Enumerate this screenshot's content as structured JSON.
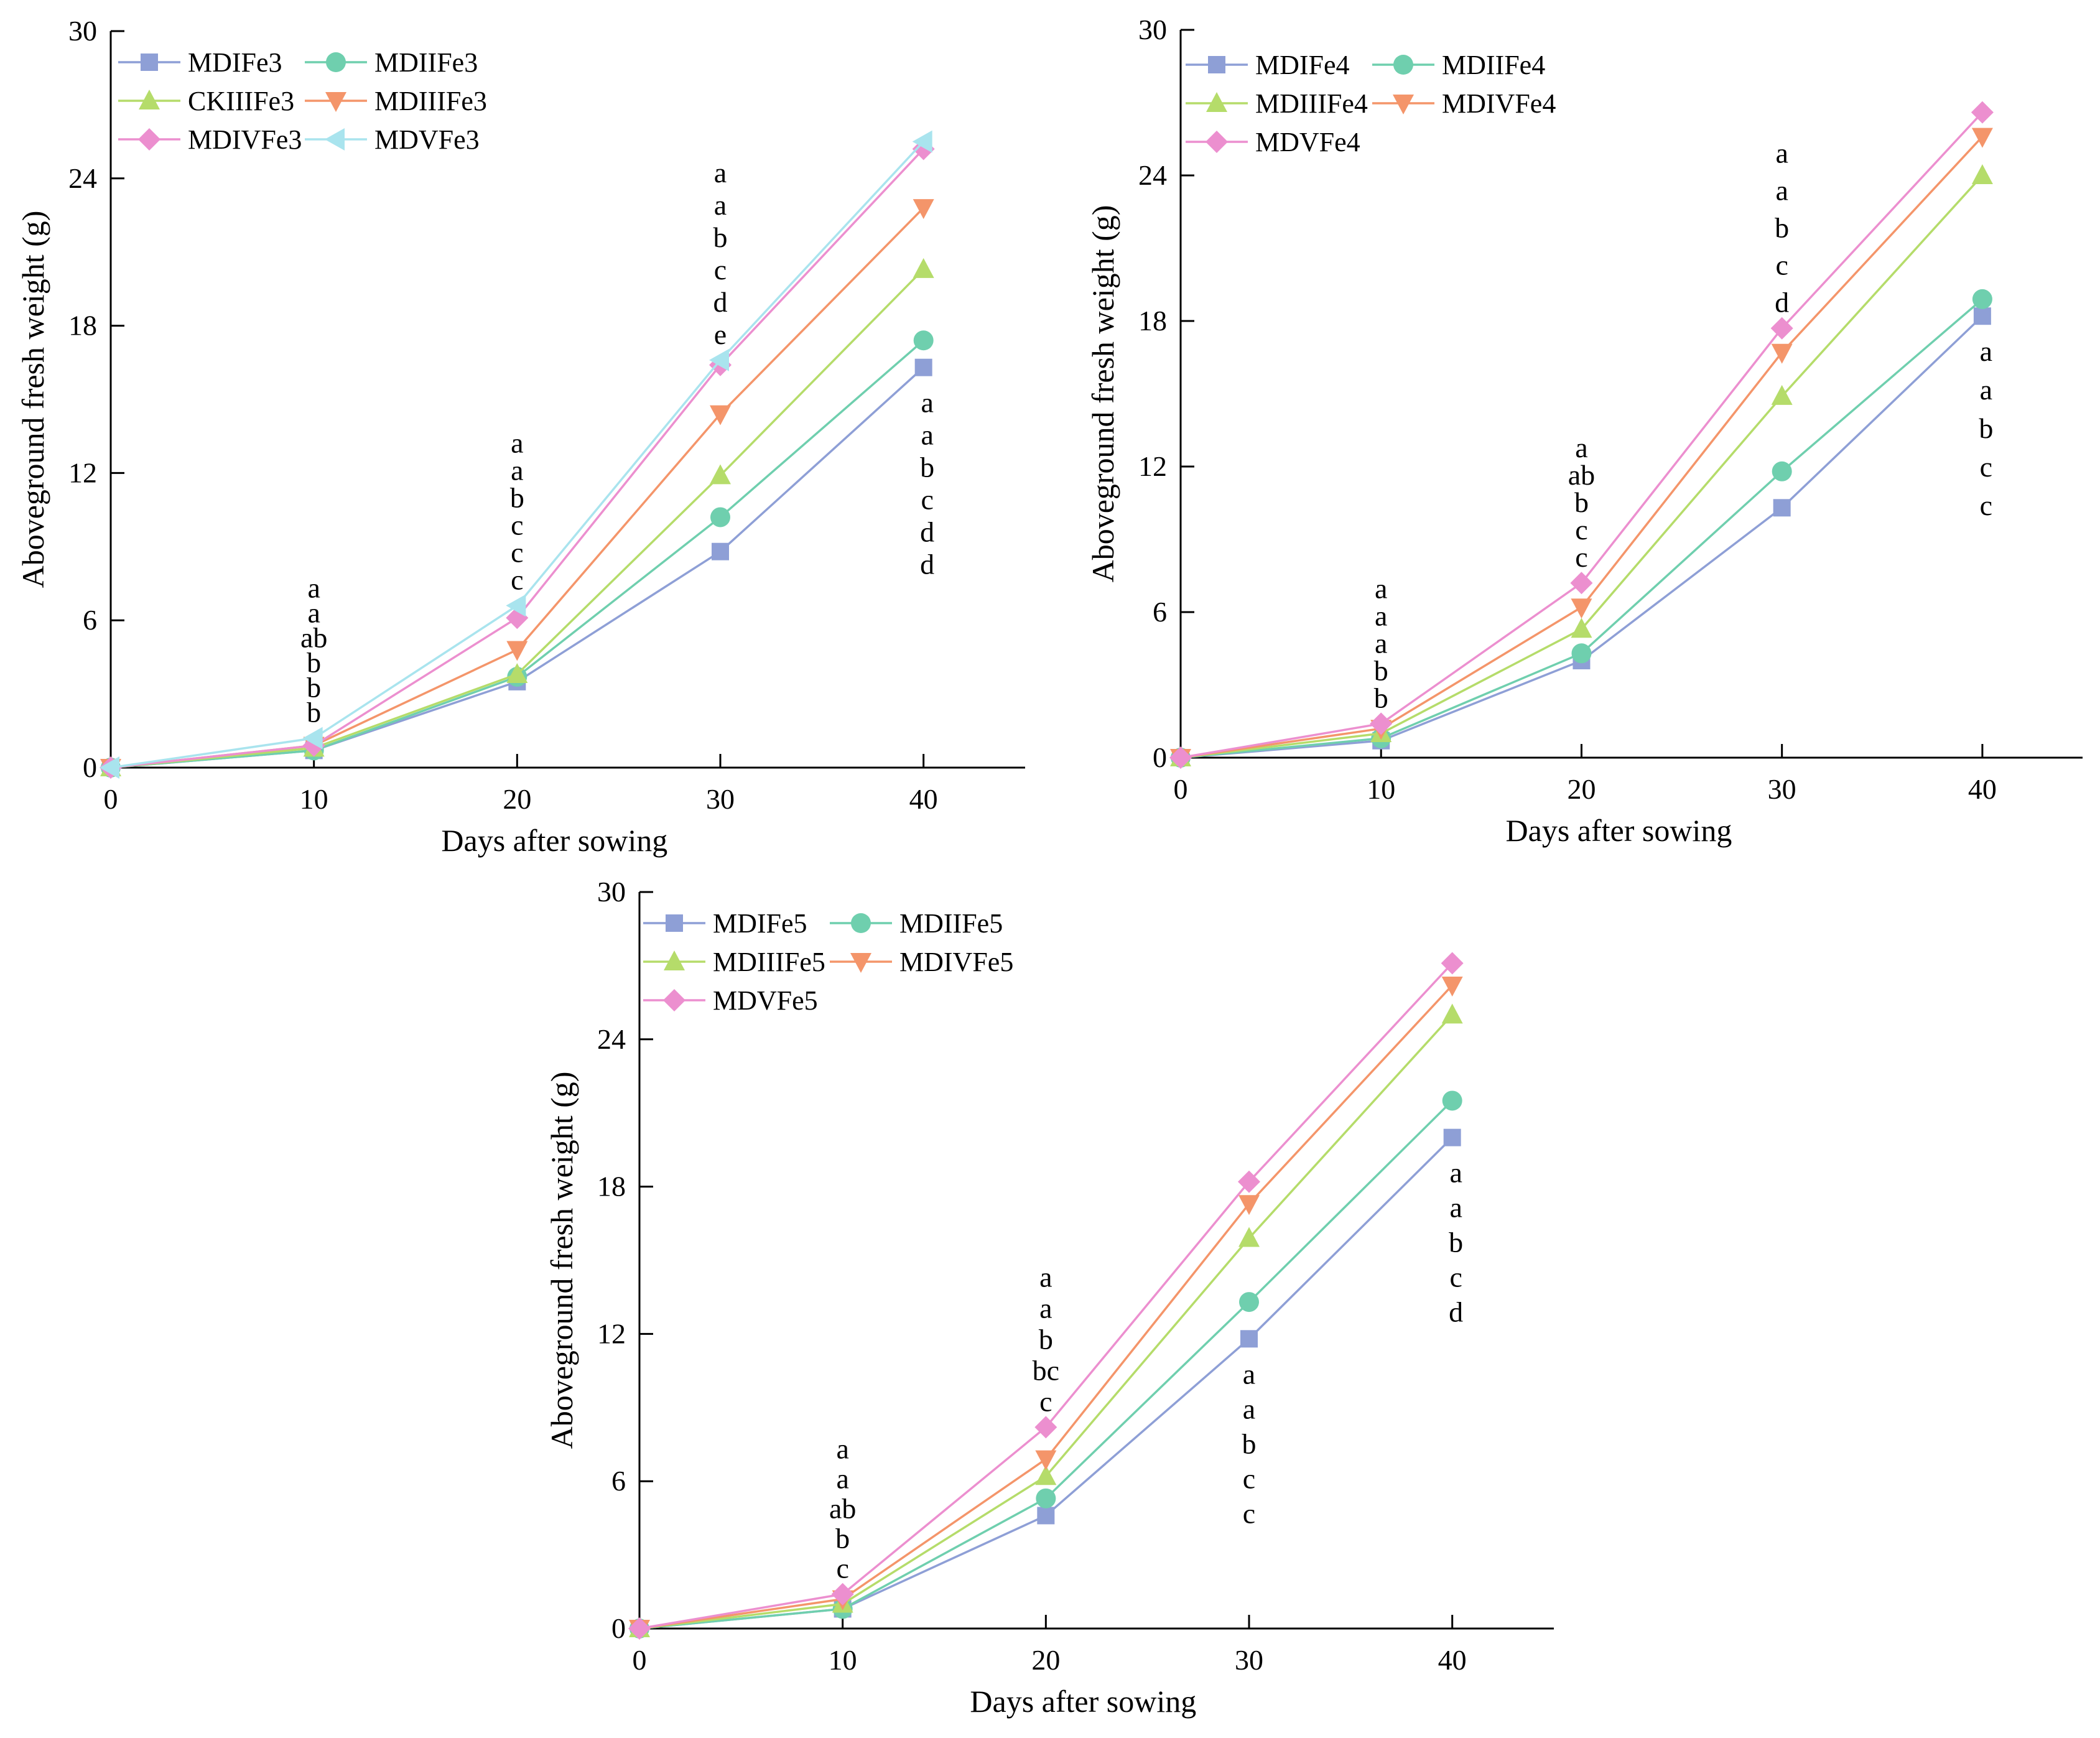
{
  "chart_data": [
    {
      "type": "line",
      "panel": "top-left",
      "x": [
        0,
        10,
        20,
        30,
        40
      ],
      "xlabel": "Days after sowing",
      "ylabel": "Aboveground fresh weight (g)",
      "xlim": [
        0,
        45
      ],
      "ylim": [
        0,
        30
      ],
      "xticks": [
        "0",
        "10",
        "20",
        "30",
        "40"
      ],
      "yticks": [
        "0",
        "6",
        "12",
        "18",
        "24",
        "30"
      ],
      "series": [
        {
          "name": "MDIFe3",
          "marker": "square",
          "color": "#8e9fd6",
          "values": [
            0,
            0.7,
            3.5,
            8.8,
            16.3
          ]
        },
        {
          "name": "MDIIFe3",
          "marker": "circle",
          "color": "#6fcfae",
          "values": [
            0,
            0.7,
            3.7,
            10.2,
            17.4
          ]
        },
        {
          "name": "CKIIIFe3",
          "marker": "triangle-up",
          "color": "#b5dc6a",
          "values": [
            0,
            0.8,
            3.8,
            11.9,
            20.3
          ]
        },
        {
          "name": "MDIIIFe3",
          "marker": "triangle-down",
          "color": "#f4956a",
          "values": [
            0,
            0.9,
            4.8,
            14.4,
            22.8
          ]
        },
        {
          "name": "MDIVFe3",
          "marker": "diamond",
          "color": "#ec8fcf",
          "values": [
            0,
            0.9,
            6.1,
            16.4,
            25.2
          ]
        },
        {
          "name": "MDVFe3",
          "marker": "triangle-left",
          "color": "#a9e4ee",
          "values": [
            0,
            1.2,
            6.6,
            16.6,
            25.5
          ]
        }
      ],
      "annotations": [
        {
          "x": 10,
          "letters": [
            "a",
            "a",
            "ab",
            "b",
            "b",
            "b"
          ]
        },
        {
          "x": 20,
          "letters": [
            "a",
            "a",
            "b",
            "c",
            "c",
            "c"
          ]
        },
        {
          "x": 30,
          "letters": [
            "a",
            "a",
            "b",
            "c",
            "d",
            "e"
          ]
        },
        {
          "x": 40,
          "letters": [
            "a",
            "a",
            "b",
            "c",
            "d",
            "d"
          ]
        }
      ],
      "legend": "top-left"
    },
    {
      "type": "line",
      "panel": "top-right",
      "x": [
        0,
        10,
        20,
        30,
        40
      ],
      "xlabel": "Days after sowing",
      "ylabel": "Aboveground fresh weight (g)",
      "xlim": [
        0,
        45
      ],
      "ylim": [
        0,
        30
      ],
      "xticks": [
        "0",
        "10",
        "20",
        "30",
        "40"
      ],
      "yticks": [
        "0",
        "6",
        "12",
        "18",
        "24",
        "30"
      ],
      "series": [
        {
          "name": "MDIFe4",
          "marker": "square",
          "color": "#8e9fd6",
          "values": [
            0,
            0.7,
            4.0,
            10.3,
            18.2
          ]
        },
        {
          "name": "MDIIFe4",
          "marker": "circle",
          "color": "#6fcfae",
          "values": [
            0,
            0.8,
            4.3,
            11.8,
            18.9
          ]
        },
        {
          "name": "MDIIIFe4",
          "marker": "triangle-up",
          "color": "#b5dc6a",
          "values": [
            0,
            1.0,
            5.3,
            14.9,
            24.0
          ]
        },
        {
          "name": "MDIVFe4",
          "marker": "triangle-down",
          "color": "#f4956a",
          "values": [
            0,
            1.2,
            6.2,
            16.7,
            25.6
          ]
        },
        {
          "name": "MDVFe4",
          "marker": "diamond",
          "color": "#ec8fcf",
          "values": [
            0,
            1.4,
            7.2,
            17.7,
            26.6
          ]
        }
      ],
      "annotations": [
        {
          "x": 10,
          "letters": [
            "a",
            "a",
            "a",
            "b",
            "b"
          ]
        },
        {
          "x": 20,
          "letters": [
            "a",
            "ab",
            "b",
            "c",
            "c"
          ]
        },
        {
          "x": 30,
          "letters": [
            "a",
            "a",
            "b",
            "c",
            "d"
          ]
        },
        {
          "x": 40,
          "letters": [
            "a",
            "a",
            "b",
            "c",
            "c"
          ]
        }
      ],
      "legend": "top-left"
    },
    {
      "type": "line",
      "panel": "bottom",
      "x": [
        0,
        10,
        20,
        30,
        40
      ],
      "xlabel": "Days after sowing",
      "ylabel": "Aboveground fresh weight (g)",
      "xlim": [
        0,
        45
      ],
      "ylim": [
        0,
        30
      ],
      "xticks": [
        "0",
        "10",
        "20",
        "30",
        "40"
      ],
      "yticks": [
        "0",
        "6",
        "12",
        "18",
        "24",
        "30"
      ],
      "series": [
        {
          "name": "MDIFe5",
          "marker": "square",
          "color": "#8e9fd6",
          "values": [
            0,
            0.8,
            4.6,
            11.8,
            20.0
          ]
        },
        {
          "name": "MDIIFe5",
          "marker": "circle",
          "color": "#6fcfae",
          "values": [
            0,
            0.8,
            5.3,
            13.3,
            21.5
          ]
        },
        {
          "name": "MDIIIFe5",
          "marker": "triangle-up",
          "color": "#b5dc6a",
          "values": [
            0,
            1.0,
            6.2,
            15.9,
            25.0
          ]
        },
        {
          "name": "MDIVFe5",
          "marker": "triangle-down",
          "color": "#f4956a",
          "values": [
            0,
            1.2,
            6.9,
            17.3,
            26.2
          ]
        },
        {
          "name": "MDVFe5",
          "marker": "diamond",
          "color": "#ec8fcf",
          "values": [
            0,
            1.4,
            8.2,
            18.2,
            27.1
          ]
        }
      ],
      "annotations": [
        {
          "x": 10,
          "letters": [
            "a",
            "a",
            "ab",
            "b",
            "c"
          ]
        },
        {
          "x": 20,
          "letters": [
            "a",
            "a",
            "b",
            "bc",
            "c"
          ]
        },
        {
          "x": 30,
          "letters": [
            "a",
            "a",
            "b",
            "c",
            "c"
          ]
        },
        {
          "x": 40,
          "letters": [
            "a",
            "a",
            "b",
            "c",
            "d"
          ]
        }
      ],
      "legend": "top-left"
    }
  ]
}
